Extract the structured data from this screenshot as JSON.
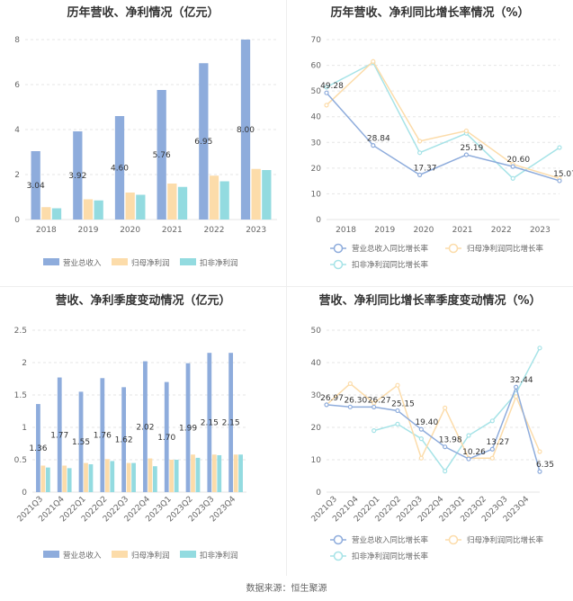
{
  "source": "数据来源：恒生聚源",
  "chart_data": [
    {
      "type": "bar",
      "title": "历年营收、净利情况（亿元）",
      "categories": [
        "2018",
        "2019",
        "2020",
        "2021",
        "2022",
        "2023"
      ],
      "ylim": [
        0,
        8
      ],
      "yticks": [
        0,
        2,
        4,
        6,
        8
      ],
      "series": [
        {
          "name": "营业总收入",
          "color": "#8eacdc",
          "values": [
            3.04,
            3.92,
            4.6,
            5.76,
            6.95,
            8.0
          ],
          "labels": [
            "3.04",
            "3.92",
            "4.60",
            "5.76",
            "6.95",
            "8.00"
          ]
        },
        {
          "name": "归母净利润",
          "color": "#fcdcaa",
          "values": [
            0.55,
            0.9,
            1.2,
            1.6,
            1.95,
            2.25
          ]
        },
        {
          "name": "扣非净利润",
          "color": "#93dbe0",
          "values": [
            0.5,
            0.85,
            1.1,
            1.45,
            1.7,
            2.2
          ]
        }
      ],
      "legend": "bottom"
    },
    {
      "type": "line",
      "title": "历年营收、净利同比增长率情况（%）",
      "categories": [
        "2018",
        "2019",
        "2020",
        "2021",
        "2022",
        "2023"
      ],
      "ylim": [
        0,
        70
      ],
      "yticks": [
        0,
        10,
        20,
        30,
        40,
        50,
        60,
        70
      ],
      "series": [
        {
          "name": "营业总收入同比增长率",
          "color": "#8eacdc",
          "values": [
            49.28,
            28.84,
            17.37,
            25.19,
            20.6,
            15.07
          ],
          "labels": [
            "49.28",
            "28.84",
            "17.37",
            "25.19",
            "20.60",
            "15.07"
          ]
        },
        {
          "name": "归母净利润同比增长率",
          "color": "#fcdcaa",
          "values": [
            44.5,
            61.5,
            30.5,
            34.5,
            21.5,
            16.0
          ]
        },
        {
          "name": "扣非净利润同比增长率",
          "color": "#a6e3e7",
          "values": [
            51.5,
            61.0,
            26.0,
            33.5,
            16.0,
            28.0
          ]
        }
      ],
      "legend": "bottom"
    },
    {
      "type": "bar",
      "title": "营收、净利季度变动情况（亿元）",
      "categories": [
        "2021Q3",
        "2021Q4",
        "2022Q1",
        "2022Q2",
        "2022Q3",
        "2022Q4",
        "2023Q1",
        "2023Q2",
        "2023Q3",
        "2023Q4"
      ],
      "ylim": [
        0,
        2.5
      ],
      "yticks": [
        "0",
        "0.5",
        "1",
        "1.5",
        "2",
        "2.5"
      ],
      "series": [
        {
          "name": "营业总收入",
          "color": "#8eacdc",
          "values": [
            1.36,
            1.77,
            1.55,
            1.76,
            1.62,
            2.02,
            1.7,
            1.99,
            2.15,
            2.15
          ],
          "labels": [
            "1.36",
            "1.77",
            "1.55",
            "1.76",
            "1.62",
            "2.02",
            "1.70",
            "1.99",
            "2.15",
            "2.15"
          ]
        },
        {
          "name": "归母净利润",
          "color": "#fcdcaa",
          "values": [
            0.41,
            0.41,
            0.45,
            0.51,
            0.45,
            0.52,
            0.5,
            0.58,
            0.58,
            0.58
          ]
        },
        {
          "name": "扣非净利润",
          "color": "#93dbe0",
          "values": [
            0.38,
            0.37,
            0.43,
            0.48,
            0.45,
            0.4,
            0.5,
            0.53,
            0.57,
            0.58
          ]
        }
      ],
      "legend": "bottom"
    },
    {
      "type": "line",
      "title": "营收、净利同比增长率季度变动情况（%）",
      "categories": [
        "2021Q3",
        "2021Q4",
        "2022Q1",
        "2022Q2",
        "2022Q3",
        "2022Q4",
        "2023Q1",
        "2023Q2",
        "2023Q3",
        "2023Q4"
      ],
      "ylim": [
        0,
        50
      ],
      "yticks": [
        0,
        10,
        20,
        30,
        40,
        50
      ],
      "series": [
        {
          "name": "营业总收入同比增长率",
          "color": "#8eacdc",
          "values": [
            26.97,
            26.3,
            26.27,
            25.15,
            19.4,
            13.98,
            10.26,
            13.27,
            32.44,
            6.35
          ],
          "labels": [
            "26.97",
            "26.30",
            "26.27",
            "25.15",
            "19.40",
            "13.98",
            "10.26",
            "13.27",
            "32.44",
            "6.35"
          ]
        },
        {
          "name": "归母净利润同比增长率",
          "color": "#fcdcaa",
          "values": [
            27.0,
            33.5,
            27.5,
            33.0,
            10.5,
            26.0,
            10.5,
            10.5,
            29.5,
            12.5
          ]
        },
        {
          "name": "扣非净利润同比增长率",
          "color": "#a6e3e7",
          "values": [
            null,
            null,
            19.0,
            21.0,
            16.5,
            6.5,
            17.5,
            22.0,
            30.5,
            44.5
          ]
        }
      ],
      "legend": "bottom"
    }
  ]
}
